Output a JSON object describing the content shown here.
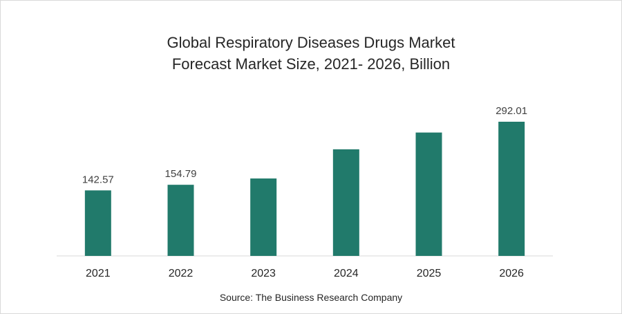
{
  "chart_data": {
    "type": "bar",
    "title_line1": "Global Respiratory Diseases Drugs Market",
    "title_line2": "Forecast Market Size, 2021- 2026, Billion",
    "categories": [
      "2021",
      "2022",
      "2023",
      "2024",
      "2025",
      "2026"
    ],
    "values": [
      142.57,
      154.79,
      168.5,
      232.0,
      268.5,
      292.01
    ],
    "data_labels": [
      "142.57",
      "154.79",
      "",
      "",
      "",
      "292.01"
    ],
    "ylim": [
      0,
      320
    ],
    "grid": false,
    "bar_color": "#217a6b",
    "source": "Source: The Business Research Company"
  }
}
